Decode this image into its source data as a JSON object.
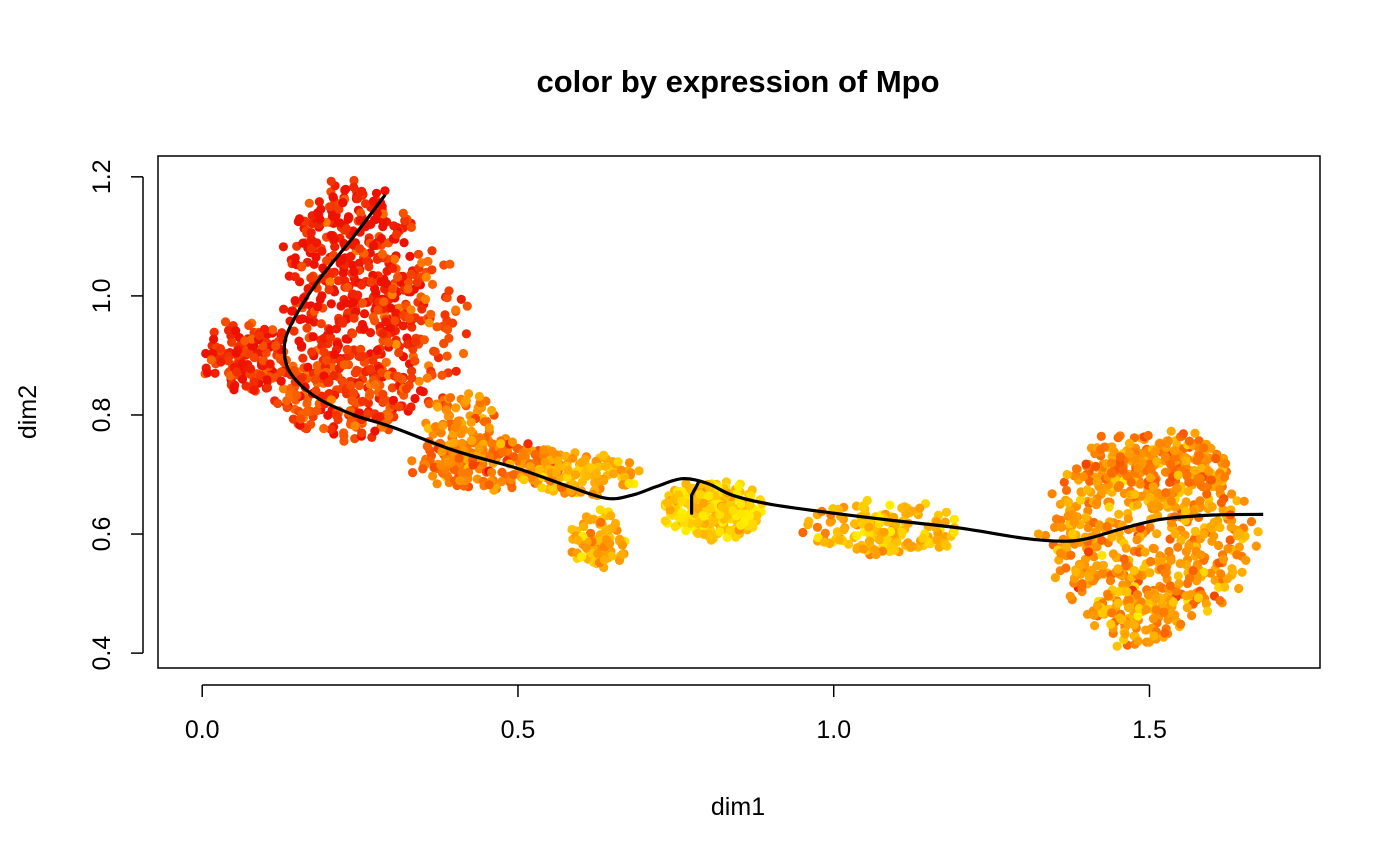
{
  "chart_data": {
    "type": "scatter",
    "title": "color by expression of Mpo",
    "xlabel": "dim1",
    "ylabel": "dim2",
    "xlim": [
      -0.07,
      1.77
    ],
    "ylim": [
      0.375,
      1.235
    ],
    "xticks": [
      0.0,
      0.5,
      1.0,
      1.5
    ],
    "xtick_labels": [
      "0.0",
      "0.5",
      "1.0",
      "1.5"
    ],
    "yticks": [
      0.4,
      0.6,
      0.8,
      1.0,
      1.2
    ],
    "ytick_labels": [
      "0.4",
      "0.6",
      "0.8",
      "1.0",
      "1.2"
    ],
    "grid": false,
    "legend": "none",
    "color_scale": {
      "description": "point color encodes Mpo expression",
      "high": "#ee1100",
      "mid": "#ff8800",
      "low": "#ffee00"
    },
    "point_clusters": [
      {
        "name": "upper-left lobe",
        "cx": 0.24,
        "cy": 1.03,
        "rx": 0.11,
        "ry": 0.16,
        "count": 420,
        "expression": 0.95
      },
      {
        "name": "left tip",
        "cx": 0.07,
        "cy": 0.9,
        "rx": 0.07,
        "ry": 0.06,
        "count": 150,
        "expression": 0.9
      },
      {
        "name": "left lower lobe",
        "cx": 0.22,
        "cy": 0.83,
        "rx": 0.11,
        "ry": 0.07,
        "count": 220,
        "expression": 0.82
      },
      {
        "name": "upper-left outer edge",
        "cx": 0.35,
        "cy": 0.95,
        "rx": 0.07,
        "ry": 0.13,
        "count": 100,
        "expression": 0.78
      },
      {
        "name": "upper transition",
        "cx": 0.41,
        "cy": 0.78,
        "rx": 0.06,
        "ry": 0.06,
        "count": 90,
        "expression": 0.55
      },
      {
        "name": "transition band",
        "cx": 0.45,
        "cy": 0.72,
        "rx": 0.12,
        "ry": 0.045,
        "count": 200,
        "expression": 0.55
      },
      {
        "name": "middle band",
        "cx": 0.6,
        "cy": 0.7,
        "rx": 0.09,
        "ry": 0.035,
        "count": 110,
        "expression": 0.3
      },
      {
        "name": "lower mid pocket",
        "cx": 0.63,
        "cy": 0.59,
        "rx": 0.045,
        "ry": 0.05,
        "count": 80,
        "expression": 0.32
      },
      {
        "name": "central junction",
        "cx": 0.81,
        "cy": 0.64,
        "rx": 0.08,
        "ry": 0.05,
        "count": 260,
        "expression": 0.15
      },
      {
        "name": "right bridge",
        "cx": 1.08,
        "cy": 0.61,
        "rx": 0.12,
        "ry": 0.045,
        "count": 150,
        "expression": 0.25
      },
      {
        "name": "right lobe",
        "cx": 1.5,
        "cy": 0.6,
        "rx": 0.17,
        "ry": 0.155,
        "count": 560,
        "expression": 0.42
      },
      {
        "name": "right lobe top",
        "cx": 1.5,
        "cy": 0.72,
        "rx": 0.12,
        "ry": 0.055,
        "count": 160,
        "expression": 0.5
      },
      {
        "name": "right lobe bottom",
        "cx": 1.48,
        "cy": 0.46,
        "rx": 0.07,
        "ry": 0.05,
        "count": 90,
        "expression": 0.38
      }
    ],
    "curve": {
      "name": "principal curve",
      "color": "#000000",
      "points": [
        [
          0.29,
          1.17
        ],
        [
          0.24,
          1.1
        ],
        [
          0.18,
          1.02
        ],
        [
          0.14,
          0.95
        ],
        [
          0.13,
          0.91
        ],
        [
          0.14,
          0.87
        ],
        [
          0.18,
          0.83
        ],
        [
          0.24,
          0.8
        ],
        [
          0.3,
          0.78
        ],
        [
          0.4,
          0.74
        ],
        [
          0.5,
          0.71
        ],
        [
          0.58,
          0.68
        ],
        [
          0.64,
          0.66
        ],
        [
          0.68,
          0.665
        ],
        [
          0.72,
          0.68
        ],
        [
          0.76,
          0.693
        ],
        [
          0.8,
          0.685
        ],
        [
          0.84,
          0.665
        ],
        [
          0.9,
          0.65
        ],
        [
          1.0,
          0.635
        ],
        [
          1.1,
          0.622
        ],
        [
          1.2,
          0.61
        ],
        [
          1.3,
          0.593
        ],
        [
          1.36,
          0.588
        ],
        [
          1.4,
          0.592
        ],
        [
          1.46,
          0.61
        ],
        [
          1.52,
          0.625
        ],
        [
          1.6,
          0.632
        ],
        [
          1.68,
          0.633
        ]
      ],
      "branch": [
        [
          0.785,
          0.685
        ],
        [
          0.775,
          0.665
        ],
        [
          0.775,
          0.635
        ]
      ]
    }
  }
}
